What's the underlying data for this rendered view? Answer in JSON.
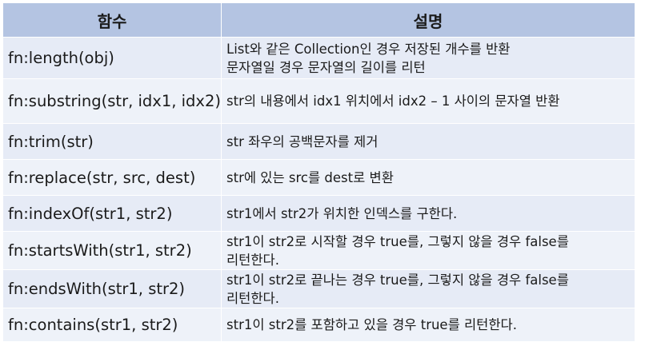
{
  "header": {
    "col1": "함수",
    "col2": "설명"
  },
  "rows": [
    {
      "function": "fn:length(obj)",
      "description": [
        "List와 같은 Collection인 경우 저장된 개수를 반환",
        "문자열일 경우 문자열의 길이를 리턴"
      ]
    },
    {
      "function": "fn:substring(str, idx1, idx2)",
      "description": [
        "str의 내용에서 idx1 위치에서 idx2 – 1 사이의 문자열 반환"
      ]
    },
    {
      "function": "fn:trim(str)",
      "description": [
        "str 좌우의 공백문자를 제거"
      ]
    },
    {
      "function": "fn:replace(str, src, dest)",
      "description": [
        "str에 있는 src를 dest로 변환"
      ]
    },
    {
      "function": "fn:indexOf(str1, str2)",
      "description": [
        "str1에서 str2가 위치한 인덱스를 구한다."
      ]
    },
    {
      "function": "fn:startsWith(str1, str2)",
      "description": [
        "str1이 str2로 시작할 경우 true를, 그렇지 않을 경우 false를",
        "리턴한다."
      ]
    },
    {
      "function": "fn:endsWith(str1, str2)",
      "description": [
        "str1이 str2로 끝나는 경우 true를, 그렇지 않을 경우 false를",
        "리턴한다."
      ]
    },
    {
      "function": "fn:contains(str1, str2)",
      "description": [
        "str1이 str2를 포함하고 있을 경우 true를 리턴한다."
      ]
    }
  ]
}
